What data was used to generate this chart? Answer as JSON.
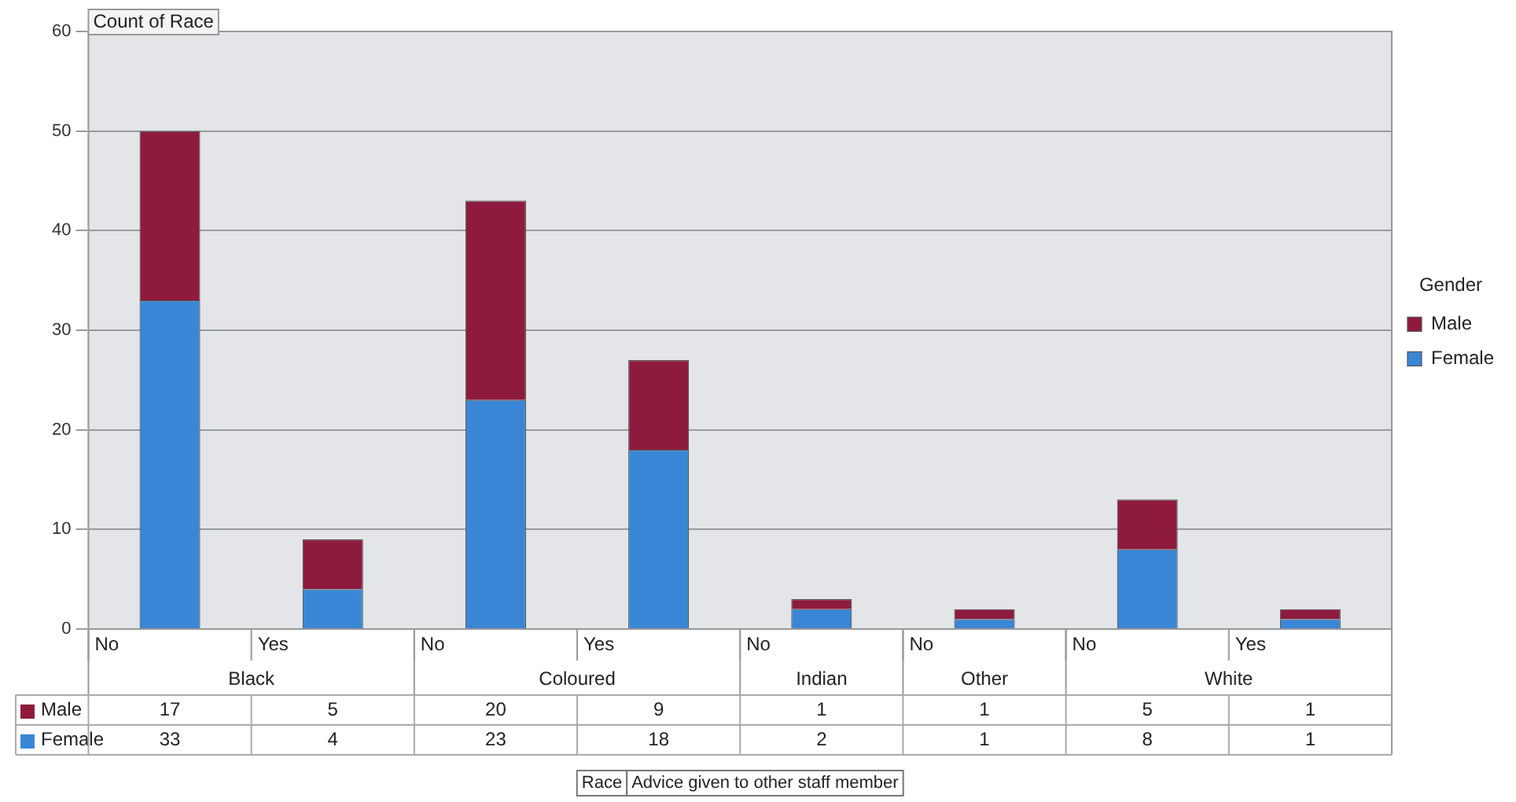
{
  "chart_data": {
    "type": "bar",
    "stacked": true,
    "ylabel": "Count of Race",
    "categories": [
      "No",
      "Yes",
      "No",
      "Yes",
      "No",
      "No",
      "No",
      "Yes"
    ],
    "series": [
      {
        "name": "Female",
        "color": "#3a86d6",
        "values": [
          33,
          4,
          23,
          18,
          2,
          1,
          8,
          1
        ]
      },
      {
        "name": "Male",
        "color": "#8e1b3e",
        "values": [
          17,
          5,
          20,
          9,
          1,
          1,
          5,
          1
        ]
      }
    ],
    "ylim": [
      0,
      60
    ],
    "yticks": [
      0,
      10,
      20,
      30,
      40,
      50,
      60
    ],
    "grid": "y",
    "legend": "right",
    "legend_title": "Gender",
    "data_labels": true,
    "annotations": [
      "Black",
      "Coloured",
      "Indian",
      "Other",
      "White",
      "Race",
      "Advice given to other staff member"
    ]
  }
}
